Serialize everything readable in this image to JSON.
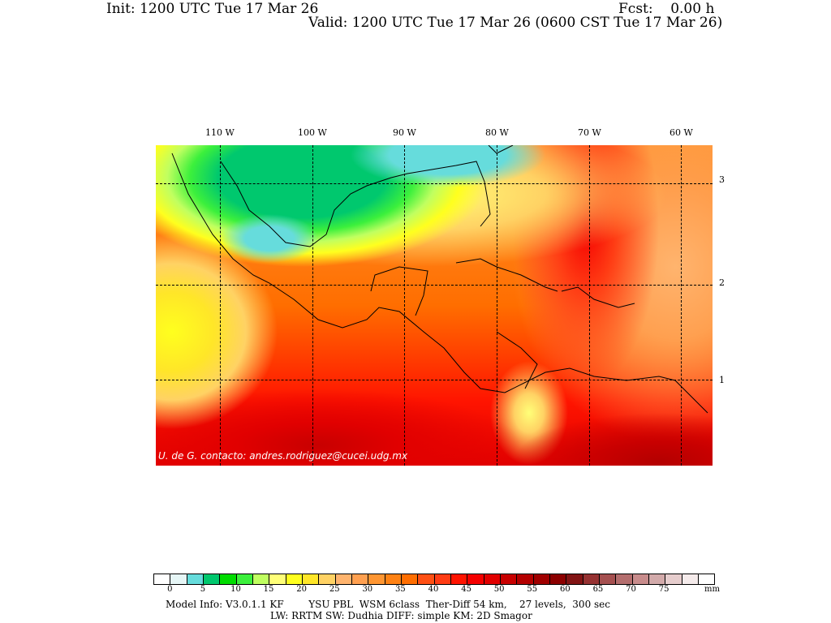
{
  "header": {
    "init": "Init: 1200 UTC Tue 17 Mar 26",
    "fcst": "Fcst:    0.00 h",
    "valid": "Valid: 1200 UTC Tue 17 Mar 26 (0600 CST Tue 17 Mar 26)"
  },
  "map": {
    "lon_labels": [
      "110 W",
      "100 W",
      "90 W",
      "80 W",
      "70 W",
      "60 W"
    ],
    "lat_labels": [
      "3",
      "2",
      "1"
    ],
    "watermark": "U. de G. contacto: andres.rodriguez@cucei.udg.mx"
  },
  "colorbar": {
    "colors": [
      "#ffffff",
      "#e6f6f6",
      "#66dcdc",
      "#00c86e",
      "#00dc00",
      "#3cf03c",
      "#c0ff60",
      "#ffff78",
      "#ffff1e",
      "#ffe628",
      "#ffd264",
      "#ffb46e",
      "#ffa050",
      "#ff9632",
      "#ff8214",
      "#ff6e00",
      "#ff5014",
      "#ff3c14",
      "#ff1400",
      "#f50000",
      "#e10000",
      "#c80000",
      "#b40000",
      "#a00000",
      "#8c0000",
      "#821414",
      "#963232",
      "#a55050",
      "#b46e6e",
      "#c88c8c",
      "#d2aaaa",
      "#e6cdcd",
      "#f5ebeb",
      "#ffffff"
    ],
    "labels": [
      "0",
      "5",
      "10",
      "15",
      "20",
      "25",
      "30",
      "35",
      "40",
      "45",
      "50",
      "55",
      "60",
      "65",
      "70",
      "75"
    ],
    "unit": "mm"
  },
  "footer": {
    "line1": "Model Info: V3.0.1.1 KF        YSU PBL  WSM 6class  Ther-Diff 54 km,    27 levels,  300 sec",
    "line2": "LW: RRTM SW: Dudhia  DIFF: simple KM: 2D Smagor"
  }
}
